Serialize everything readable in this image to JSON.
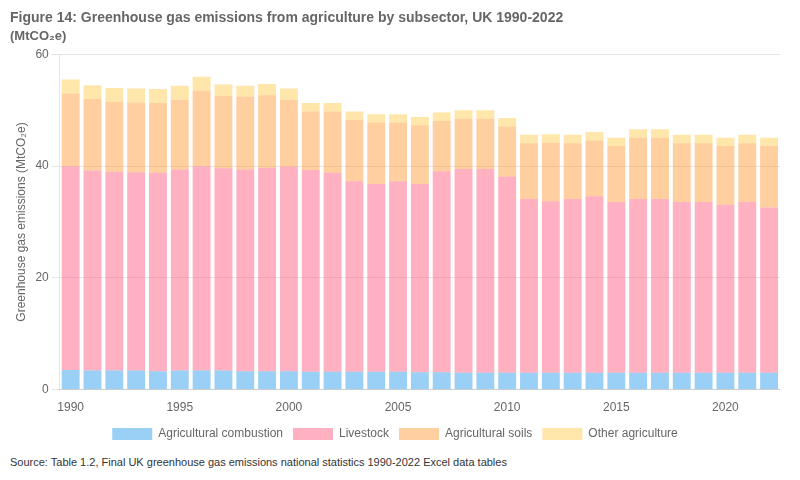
{
  "chart_data": {
    "type": "bar",
    "title": "Figure 14: Greenhouse gas emissions from agriculture by subsector, UK 1990-2022",
    "subtitle": "(MtCO₂e)",
    "annotations": [
      "Source:",
      "Table 1.2, Final UK greenhouse gas emissions national statistics 1990-2022 Excel data tables"
    ],
    "categories": [
      "1990",
      null,
      null,
      null,
      null,
      "1995",
      null,
      null,
      null,
      null,
      "2000",
      null,
      null,
      null,
      null,
      "2005",
      null,
      null,
      null,
      null,
      "2010",
      null,
      null,
      null,
      null,
      "2015",
      null,
      null,
      null,
      null,
      "2020",
      null,
      null
    ],
    "series": [
      {
        "name": "Agricultural combustion",
        "values": [
          3.5,
          3.4,
          3.4,
          3.4,
          3.3,
          3.4,
          3.4,
          3.4,
          3.3,
          3.3,
          3.3,
          3.2,
          3.2,
          3.2,
          3.2,
          3.2,
          3.1,
          3.1,
          3.0,
          3.0,
          3.0,
          3.0,
          3.0,
          3.0,
          3.0,
          3.0,
          3.0,
          3.0,
          3.0,
          3.0,
          3.0,
          3.0,
          3.0
        ]
      },
      {
        "name": "Livestock",
        "values": [
          36.5,
          35.8,
          35.6,
          35.5,
          35.5,
          36.0,
          36.6,
          36.2,
          36.1,
          36.4,
          36.6,
          36.1,
          35.6,
          34.1,
          33.6,
          34.1,
          33.7,
          36.0,
          36.5,
          36.5,
          35.1,
          31.1,
          30.7,
          31.1,
          31.6,
          30.6,
          31.1,
          31.1,
          30.6,
          30.6,
          30.1,
          30.6,
          29.6
        ]
      },
      {
        "name": "Agricultural soils",
        "values": [
          13.0,
          12.8,
          12.5,
          12.5,
          12.5,
          12.5,
          13.5,
          13.0,
          13.0,
          13.0,
          12.0,
          10.5,
          11.0,
          11.0,
          11.0,
          10.5,
          10.5,
          9.0,
          9.0,
          9.0,
          9.0,
          10.0,
          10.5,
          10.0,
          10.0,
          10.0,
          11.0,
          11.0,
          10.5,
          10.5,
          10.5,
          10.5,
          11.0
        ]
      },
      {
        "name": "Other agriculture",
        "values": [
          2.5,
          2.5,
          2.5,
          2.5,
          2.5,
          2.5,
          2.5,
          2.0,
          2.0,
          2.0,
          2.0,
          1.5,
          1.5,
          1.5,
          1.5,
          1.5,
          1.5,
          1.5,
          1.5,
          1.5,
          1.5,
          1.5,
          1.5,
          1.5,
          1.5,
          1.5,
          1.5,
          1.5,
          1.5,
          1.5,
          1.5,
          1.5,
          1.5
        ]
      }
    ],
    "ylabel": "Greenhouse gas emissions (MtCO₂e)",
    "ylim": [
      0,
      60
    ],
    "yticks": [
      0,
      20,
      40,
      60
    ],
    "stacked": true,
    "grid": true,
    "legend": "bottom"
  }
}
